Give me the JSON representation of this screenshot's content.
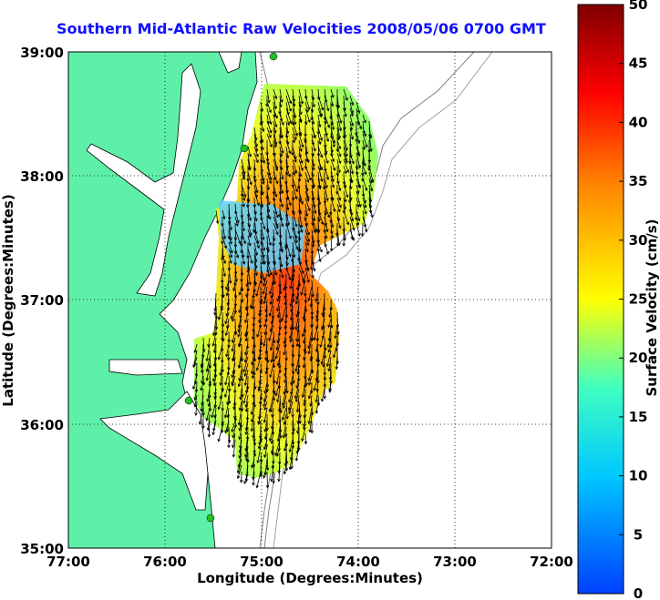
{
  "title": "Southern Mid-Atlantic Raw Velocities 2008/05/06 0700 GMT",
  "x_axis": {
    "label": "Longitude (Degrees:Minutes)",
    "ticks": [
      "77:00",
      "76:00",
      "75:00",
      "74:00",
      "73:00",
      "72:00"
    ]
  },
  "y_axis": {
    "label": "Latitude (Degrees:Minutes)",
    "ticks": [
      "39:00",
      "38:00",
      "37:00",
      "36:00",
      "35:00"
    ]
  },
  "colorbar": {
    "label": "Surface Velocity (cm/s)",
    "ticks": [
      "50",
      "45",
      "40",
      "35",
      "30",
      "25",
      "20",
      "15",
      "10",
      "5",
      "0"
    ],
    "min": 0,
    "max": 50,
    "colors": [
      "#0040ff",
      "#00c8ff",
      "#40ffc0",
      "#ffff00",
      "#ff8000",
      "#ff0000",
      "#800000"
    ]
  },
  "map": {
    "lon_range": [
      -77,
      -72
    ],
    "lat_range": [
      35,
      39
    ],
    "land_color": "#5ef0a8",
    "grid": "dotted"
  }
}
